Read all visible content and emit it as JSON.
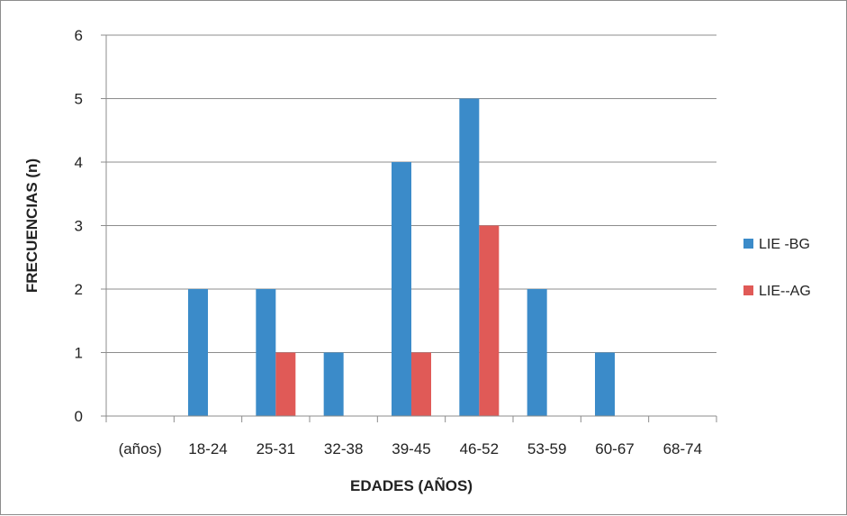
{
  "chart_data": {
    "type": "bar",
    "title": "",
    "xlabel": "EDADES (AÑOS)",
    "ylabel": "FRECUENCIAS (n)",
    "categories": [
      "(años)",
      "18-24",
      "25-31",
      "32-38",
      "39-45",
      "46-52",
      "53-59",
      "60-67",
      "68-74"
    ],
    "series": [
      {
        "name": "LIE -BG",
        "color": "#3b8bc9",
        "values": [
          0,
          2,
          2,
          1,
          4,
          5,
          2,
          1,
          0
        ]
      },
      {
        "name": "LIE--AG",
        "color": "#e05a57",
        "values": [
          0,
          0,
          1,
          0,
          1,
          3,
          0,
          0,
          0
        ]
      }
    ],
    "ylim": [
      0,
      6
    ],
    "yticks": [
      0,
      1,
      2,
      3,
      4,
      5,
      6
    ],
    "grid": true,
    "legend_position": "right"
  }
}
